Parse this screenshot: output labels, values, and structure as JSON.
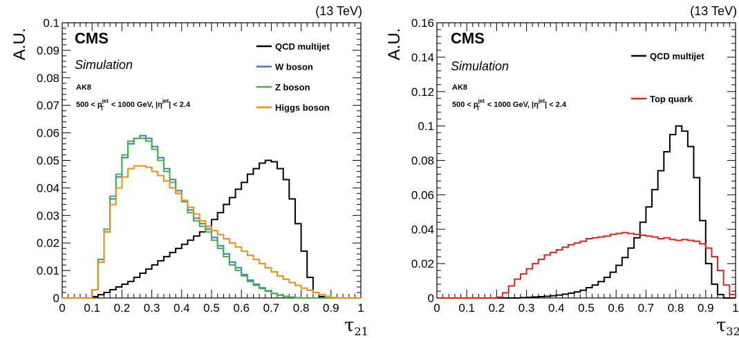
{
  "chart_data": [
    {
      "type": "line",
      "step": true,
      "energy_label": "(13 TeV)",
      "experiment": "CMS",
      "subtitle": "Simulation",
      "jet_label": "AK8",
      "cut_label": {
        "pre": "500 < p",
        "sup1": "jet",
        "sub1": "T",
        "mid": " < 1000 GeV, |η",
        "sup2": "jet",
        "post": "| < 2.4"
      },
      "xlabel": {
        "main": "τ",
        "sub": "21"
      },
      "ylabel": "A.U.",
      "xlim": [
        0,
        1
      ],
      "ylim": [
        0,
        0.1
      ],
      "xticks": [
        0,
        0.1,
        0.2,
        0.3,
        0.4,
        0.5,
        0.6,
        0.7,
        0.8,
        0.9,
        1
      ],
      "xtick_labels": [
        "0",
        "0.1",
        "0.2",
        "0.3",
        "0.4",
        "0.5",
        "0.6",
        "0.7",
        "0.8",
        "0.9",
        "1"
      ],
      "yticks": [
        0,
        0.01,
        0.02,
        0.03,
        0.04,
        0.05,
        0.06,
        0.07,
        0.08,
        0.09,
        0.1
      ],
      "ytick_labels": [
        "0",
        "0.01",
        "0.02",
        "0.03",
        "0.04",
        "0.05",
        "0.06",
        "0.07",
        "0.08",
        "0.09",
        "0.1"
      ],
      "bin_edges_start": 0,
      "bin_width": 0.02,
      "series": [
        {
          "name": "QCD multijet",
          "color": "#000000",
          "values": [
            0,
            0,
            0,
            0,
            0,
            0.0005,
            0.0012,
            0.002,
            0.003,
            0.004,
            0.005,
            0.006,
            0.0075,
            0.009,
            0.0105,
            0.012,
            0.0135,
            0.015,
            0.0165,
            0.018,
            0.0195,
            0.021,
            0.0225,
            0.024,
            0.026,
            0.0285,
            0.031,
            0.034,
            0.0365,
            0.0395,
            0.042,
            0.045,
            0.047,
            0.049,
            0.05,
            0.0495,
            0.047,
            0.043,
            0.036,
            0.027,
            0.017,
            0.0075,
            0.002,
            0.0005,
            0,
            0,
            0,
            0,
            0,
            0
          ]
        },
        {
          "name": "W boson",
          "color": "#3a78c0",
          "values": [
            0,
            0,
            0,
            0,
            0,
            0.003,
            0.014,
            0.024,
            0.036,
            0.044,
            0.051,
            0.056,
            0.058,
            0.059,
            0.058,
            0.055,
            0.051,
            0.047,
            0.043,
            0.039,
            0.035,
            0.032,
            0.029,
            0.027,
            0.025,
            0.022,
            0.019,
            0.016,
            0.013,
            0.011,
            0.0085,
            0.0065,
            0.005,
            0.0037,
            0.0026,
            0.0017,
            0.0011,
            0.0006,
            0.0003,
            0.0001,
            0,
            0,
            0,
            0,
            0,
            0,
            0,
            0,
            0,
            0
          ]
        },
        {
          "name": "Z boson",
          "color": "#44b049",
          "values": [
            0,
            0,
            0,
            0,
            0,
            0.003,
            0.014,
            0.025,
            0.037,
            0.045,
            0.052,
            0.057,
            0.058,
            0.058,
            0.057,
            0.054,
            0.05,
            0.046,
            0.042,
            0.038,
            0.035,
            0.031,
            0.028,
            0.026,
            0.024,
            0.021,
            0.018,
            0.015,
            0.012,
            0.01,
            0.008,
            0.006,
            0.0046,
            0.0034,
            0.0024,
            0.0016,
            0.001,
            0.0006,
            0.0003,
            0.0001,
            0,
            0,
            0,
            0,
            0,
            0,
            0,
            0,
            0,
            0
          ]
        },
        {
          "name": "Higgs boson",
          "color": "#f28c16",
          "values": [
            0,
            0,
            0,
            0,
            0,
            0.003,
            0.013,
            0.024,
            0.034,
            0.04,
            0.044,
            0.047,
            0.048,
            0.048,
            0.0475,
            0.046,
            0.0445,
            0.0425,
            0.04,
            0.038,
            0.0355,
            0.033,
            0.0305,
            0.028,
            0.026,
            0.0245,
            0.023,
            0.0215,
            0.02,
            0.0185,
            0.017,
            0.0155,
            0.014,
            0.0125,
            0.011,
            0.0095,
            0.008,
            0.0068,
            0.0056,
            0.0046,
            0.0036,
            0.0028,
            0.002,
            0.0012,
            0.0006,
            0.0002,
            0,
            0,
            0,
            0
          ]
        }
      ],
      "legend": [
        "QCD multijet",
        "W boson",
        "Z boson",
        "Higgs boson"
      ],
      "legend_position": "top-right"
    },
    {
      "type": "line",
      "step": true,
      "energy_label": "(13 TeV)",
      "experiment": "CMS",
      "subtitle": "Simulation",
      "jet_label": "AK8",
      "cut_label": {
        "pre": "500 < p",
        "sup1": "jet",
        "sub1": "T",
        "mid": " < 1000 GeV, |η",
        "sup2": "jet",
        "post": "| < 2.4"
      },
      "xlabel": {
        "main": "τ",
        "sub": "32"
      },
      "ylabel": "A.U.",
      "xlim": [
        0,
        1
      ],
      "ylim": [
        0,
        0.16
      ],
      "xticks": [
        0,
        0.1,
        0.2,
        0.3,
        0.4,
        0.5,
        0.6,
        0.7,
        0.8,
        0.9,
        1
      ],
      "xtick_labels": [
        "0",
        "0.1",
        "0.2",
        "0.3",
        "0.4",
        "0.5",
        "0.6",
        "0.7",
        "0.8",
        "0.9",
        "1"
      ],
      "yticks": [
        0,
        0.02,
        0.04,
        0.06,
        0.08,
        0.1,
        0.12,
        0.14,
        0.16
      ],
      "ytick_labels": [
        "0",
        "0.02",
        "0.04",
        "0.06",
        "0.08",
        "0.1",
        "0.12",
        "0.14",
        "0.16"
      ],
      "bin_edges_start": 0,
      "bin_width": 0.02,
      "series": [
        {
          "name": "QCD multijet",
          "color": "#000000",
          "values": [
            0,
            0,
            0,
            0,
            0,
            0,
            0,
            0,
            0,
            0,
            0,
            0,
            0,
            0,
            0.0002,
            0.0004,
            0.0006,
            0.0008,
            0.001,
            0.0013,
            0.0017,
            0.0022,
            0.0028,
            0.0035,
            0.0045,
            0.006,
            0.0075,
            0.0095,
            0.012,
            0.015,
            0.019,
            0.0235,
            0.029,
            0.035,
            0.044,
            0.053,
            0.063,
            0.074,
            0.085,
            0.095,
            0.1,
            0.097,
            0.088,
            0.07,
            0.045,
            0.02,
            0.008,
            0.002,
            0,
            0
          ]
        },
        {
          "name": "Top quark",
          "color": "#e5211c",
          "values": [
            0,
            0,
            0,
            0,
            0,
            0,
            0,
            0,
            0,
            0,
            0.0005,
            0.003,
            0.007,
            0.011,
            0.014,
            0.017,
            0.02,
            0.0225,
            0.025,
            0.0265,
            0.028,
            0.0295,
            0.031,
            0.032,
            0.033,
            0.0345,
            0.035,
            0.0355,
            0.036,
            0.037,
            0.0375,
            0.038,
            0.0375,
            0.037,
            0.0365,
            0.036,
            0.0355,
            0.0345,
            0.035,
            0.034,
            0.0335,
            0.034,
            0.0335,
            0.033,
            0.0315,
            0.029,
            0.024,
            0.016,
            0.0075,
            0.002
          ]
        }
      ],
      "legend": [
        "QCD multijet",
        "Top quark"
      ],
      "legend_position": "top-right"
    }
  ]
}
